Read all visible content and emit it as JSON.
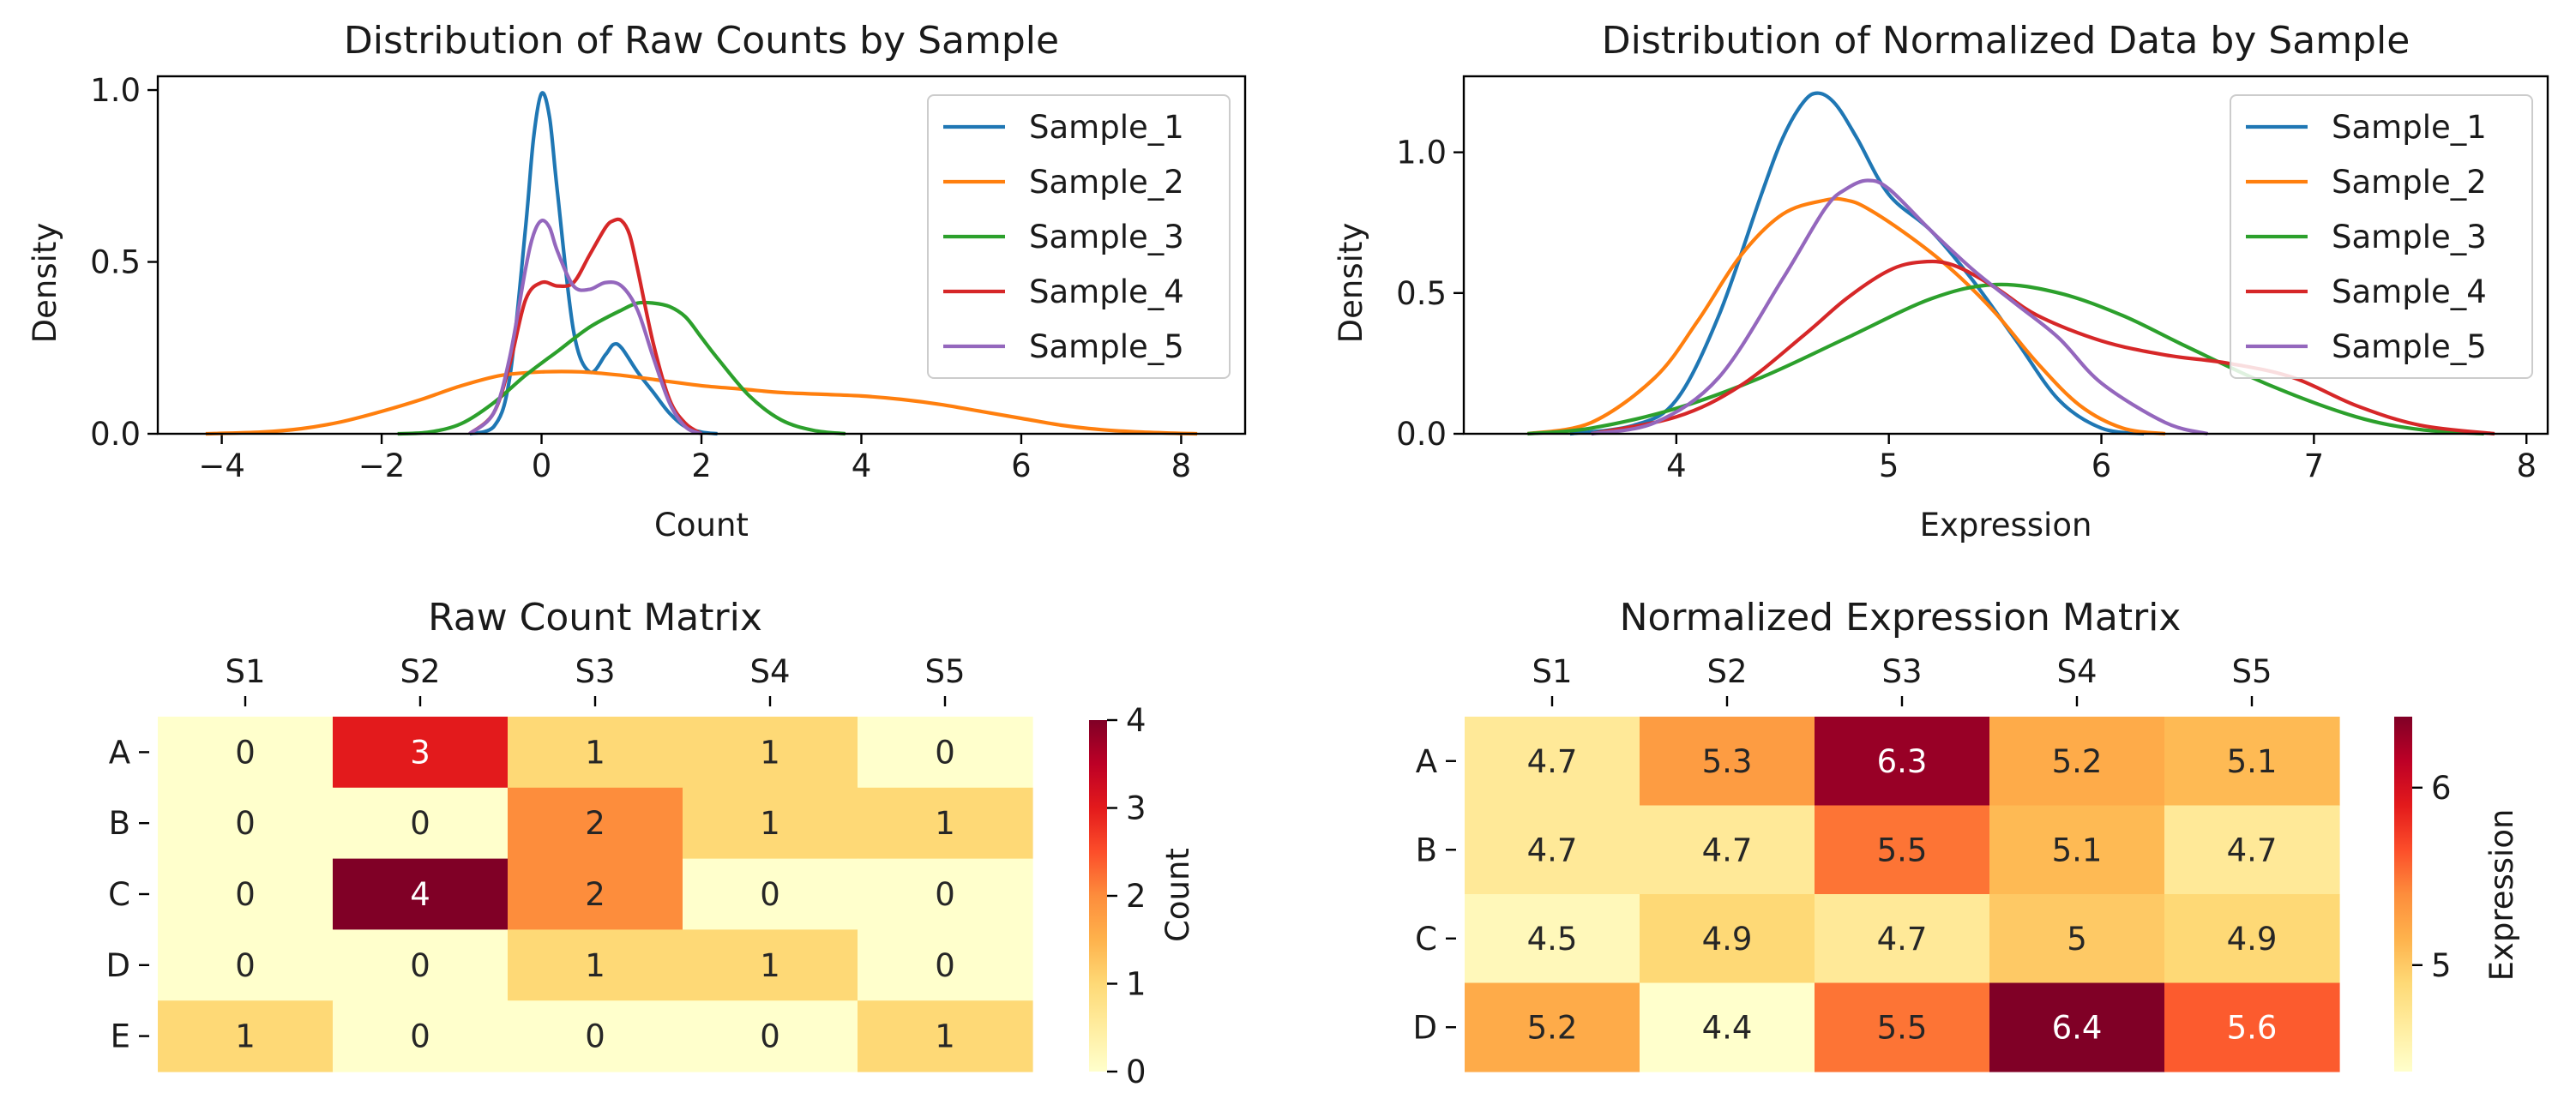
{
  "chart_data": [
    {
      "type": "line",
      "title": "Distribution of Raw Counts by Sample",
      "xlabel": "Count",
      "ylabel": "Density",
      "xlim": [
        -4.8,
        8.8
      ],
      "ylim": [
        0,
        1.04
      ],
      "xticks": [
        -4,
        -2,
        0,
        2,
        4,
        6,
        8
      ],
      "yticks": [
        0.0,
        0.5,
        1.0
      ],
      "ytick_labels": [
        "0.0",
        "0.5",
        "1.0"
      ],
      "legend_position": "top-right",
      "series": [
        {
          "name": "Sample_1",
          "color": "#1f77b4",
          "x": [
            -0.9,
            -0.6,
            -0.4,
            -0.2,
            -0.1,
            0,
            0.1,
            0.2,
            0.4,
            0.6,
            0.8,
            0.9,
            1.0,
            1.2,
            1.4,
            1.6,
            1.8,
            2.0,
            2.2
          ],
          "y": [
            0,
            0.02,
            0.16,
            0.6,
            0.86,
            0.99,
            0.92,
            0.7,
            0.3,
            0.18,
            0.23,
            0.26,
            0.25,
            0.18,
            0.12,
            0.06,
            0.02,
            0.005,
            0
          ]
        },
        {
          "name": "Sample_2",
          "color": "#ff7f0e",
          "x": [
            -4.2,
            -3.5,
            -3,
            -2.5,
            -2,
            -1.5,
            -1,
            -0.5,
            0,
            0.5,
            1,
            1.5,
            2,
            2.5,
            3,
            3.5,
            4,
            4.5,
            5,
            5.5,
            6,
            6.5,
            7,
            7.5,
            8,
            8.2
          ],
          "y": [
            0,
            0.005,
            0.015,
            0.035,
            0.065,
            0.1,
            0.14,
            0.17,
            0.18,
            0.18,
            0.17,
            0.155,
            0.14,
            0.13,
            0.12,
            0.115,
            0.11,
            0.1,
            0.085,
            0.065,
            0.045,
            0.025,
            0.012,
            0.005,
            0.001,
            0
          ]
        },
        {
          "name": "Sample_3",
          "color": "#2ca02c",
          "x": [
            -1.8,
            -1.4,
            -1,
            -0.6,
            -0.2,
            0.2,
            0.6,
            1,
            1.2,
            1.4,
            1.6,
            1.8,
            2,
            2.2,
            2.6,
            3,
            3.4,
            3.8
          ],
          "y": [
            0,
            0.005,
            0.03,
            0.09,
            0.17,
            0.24,
            0.31,
            0.36,
            0.38,
            0.38,
            0.37,
            0.34,
            0.28,
            0.22,
            0.11,
            0.04,
            0.01,
            0
          ]
        },
        {
          "name": "Sample_4",
          "color": "#d62728",
          "x": [
            -0.9,
            -0.6,
            -0.4,
            -0.2,
            0,
            0.2,
            0.4,
            0.6,
            0.8,
            0.9,
            1.0,
            1.1,
            1.2,
            1.4,
            1.6,
            1.8,
            2.0
          ],
          "y": [
            0,
            0.06,
            0.2,
            0.39,
            0.44,
            0.43,
            0.44,
            0.52,
            0.6,
            0.62,
            0.62,
            0.58,
            0.48,
            0.26,
            0.1,
            0.03,
            0
          ]
        },
        {
          "name": "Sample_5",
          "color": "#9467bd",
          "x": [
            -0.9,
            -0.6,
            -0.4,
            -0.2,
            -0.1,
            0,
            0.1,
            0.2,
            0.4,
            0.6,
            0.8,
            1.0,
            1.2,
            1.4,
            1.6,
            1.8,
            2.0
          ],
          "y": [
            0,
            0.06,
            0.22,
            0.48,
            0.58,
            0.62,
            0.6,
            0.53,
            0.43,
            0.42,
            0.44,
            0.43,
            0.36,
            0.22,
            0.09,
            0.02,
            0
          ]
        }
      ]
    },
    {
      "type": "line",
      "title": "Distribution of Normalized Data by Sample",
      "xlabel": "Expression",
      "ylabel": "Density",
      "xlim": [
        3.0,
        8.1
      ],
      "ylim": [
        0,
        1.27
      ],
      "xticks": [
        4,
        5,
        6,
        7,
        8
      ],
      "yticks": [
        0.0,
        0.5,
        1.0
      ],
      "ytick_labels": [
        "0.0",
        "0.5",
        "1.0"
      ],
      "legend_position": "top-right",
      "series": [
        {
          "name": "Sample_1",
          "color": "#1f77b4",
          "x": [
            3.5,
            3.8,
            4.0,
            4.2,
            4.4,
            4.5,
            4.6,
            4.67,
            4.75,
            4.85,
            5.0,
            5.2,
            5.4,
            5.6,
            5.8,
            6.0,
            6.2
          ],
          "y": [
            0,
            0.03,
            0.12,
            0.42,
            0.85,
            1.05,
            1.18,
            1.21,
            1.17,
            1.05,
            0.85,
            0.72,
            0.54,
            0.33,
            0.12,
            0.02,
            0
          ]
        },
        {
          "name": "Sample_2",
          "color": "#ff7f0e",
          "x": [
            3.3,
            3.6,
            3.9,
            4.1,
            4.3,
            4.5,
            4.7,
            4.8,
            4.9,
            5.1,
            5.3,
            5.5,
            5.7,
            5.9,
            6.1,
            6.3
          ],
          "y": [
            0,
            0.04,
            0.2,
            0.4,
            0.63,
            0.78,
            0.83,
            0.83,
            0.8,
            0.7,
            0.58,
            0.43,
            0.25,
            0.1,
            0.02,
            0
          ]
        },
        {
          "name": "Sample_3",
          "color": "#2ca02c",
          "x": [
            3.3,
            3.6,
            4.0,
            4.4,
            4.8,
            5.2,
            5.5,
            5.8,
            6.1,
            6.4,
            6.8,
            7.2,
            7.5,
            7.8
          ],
          "y": [
            0,
            0.02,
            0.09,
            0.2,
            0.34,
            0.48,
            0.53,
            0.5,
            0.42,
            0.31,
            0.17,
            0.06,
            0.015,
            0
          ]
        },
        {
          "name": "Sample_4",
          "color": "#d62728",
          "x": [
            3.6,
            4.0,
            4.3,
            4.6,
            4.8,
            5.0,
            5.15,
            5.3,
            5.5,
            5.7,
            6.0,
            6.3,
            6.6,
            6.9,
            7.2,
            7.5,
            7.85
          ],
          "y": [
            0,
            0.06,
            0.17,
            0.35,
            0.48,
            0.58,
            0.61,
            0.6,
            0.52,
            0.42,
            0.33,
            0.28,
            0.25,
            0.2,
            0.1,
            0.03,
            0
          ]
        },
        {
          "name": "Sample_5",
          "color": "#9467bd",
          "x": [
            3.6,
            3.9,
            4.2,
            4.5,
            4.7,
            4.8,
            4.9,
            5.0,
            5.2,
            5.4,
            5.6,
            5.8,
            6.0,
            6.3,
            6.5
          ],
          "y": [
            0,
            0.04,
            0.2,
            0.55,
            0.8,
            0.87,
            0.9,
            0.87,
            0.72,
            0.58,
            0.46,
            0.34,
            0.18,
            0.04,
            0
          ]
        }
      ]
    },
    {
      "type": "heatmap",
      "title": "Raw Count Matrix",
      "columns": [
        "S1",
        "S2",
        "S3",
        "S4",
        "S5"
      ],
      "rows": [
        "A",
        "B",
        "C",
        "D",
        "E"
      ],
      "values": [
        [
          0,
          3,
          1,
          1,
          0
        ],
        [
          0,
          0,
          2,
          1,
          1
        ],
        [
          0,
          4,
          2,
          0,
          0
        ],
        [
          0,
          0,
          1,
          1,
          0
        ],
        [
          1,
          0,
          0,
          0,
          1
        ]
      ],
      "value_labels": [
        [
          "0",
          "3",
          "1",
          "1",
          "0"
        ],
        [
          "0",
          "0",
          "2",
          "1",
          "1"
        ],
        [
          "0",
          "4",
          "2",
          "0",
          "0"
        ],
        [
          "0",
          "0",
          "1",
          "1",
          "0"
        ],
        [
          "1",
          "0",
          "0",
          "0",
          "1"
        ]
      ],
      "colormap": "YlOrRd",
      "vmin": 0,
      "vmax": 4,
      "colorbar_label": "Count",
      "colorbar_ticks": [
        0,
        1,
        2,
        3,
        4
      ],
      "colorbar_tick_labels": [
        "0",
        "1",
        "2",
        "3",
        "4"
      ]
    },
    {
      "type": "heatmap",
      "title": "Normalized Expression Matrix",
      "columns": [
        "S1",
        "S2",
        "S3",
        "S4",
        "S5"
      ],
      "rows": [
        "A",
        "B",
        "C",
        "D"
      ],
      "values": [
        [
          4.7,
          5.3,
          6.3,
          5.2,
          5.1
        ],
        [
          4.7,
          4.7,
          5.5,
          5.1,
          4.7
        ],
        [
          4.5,
          4.9,
          4.7,
          5.0,
          4.9
        ],
        [
          5.2,
          4.4,
          5.5,
          6.4,
          5.6
        ]
      ],
      "value_labels": [
        [
          "4.7",
          "5.3",
          "6.3",
          "5.2",
          "5.1"
        ],
        [
          "4.7",
          "4.7",
          "5.5",
          "5.1",
          "4.7"
        ],
        [
          "4.5",
          "4.9",
          "4.7",
          "5",
          "4.9"
        ],
        [
          "5.2",
          "4.4",
          "5.5",
          "6.4",
          "5.6"
        ]
      ],
      "colormap": "YlOrRd",
      "vmin": 4.4,
      "vmax": 6.4,
      "colorbar_label": "Expression",
      "colorbar_ticks": [
        5,
        6
      ],
      "colorbar_tick_labels": [
        "5",
        "6"
      ]
    }
  ]
}
